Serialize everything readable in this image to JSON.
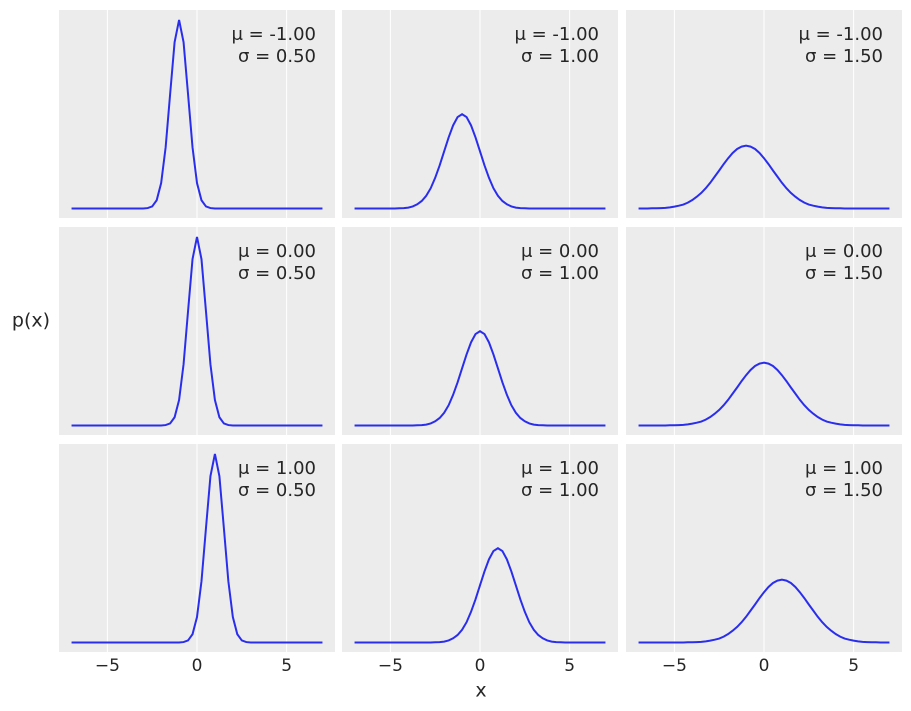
{
  "xlabel": "x",
  "ylabel": "p(x)",
  "chart_data": [
    {
      "type": "line",
      "annotation": [
        "μ = -1.00",
        "σ = 0.50"
      ],
      "color": "#2a2eec",
      "grid": true,
      "xlim": [
        -7.7,
        7.7
      ],
      "ylim": [
        -0.04,
        0.84
      ],
      "xticks": [
        {
          "value": -5,
          "label": "−5"
        },
        0,
        5
      ],
      "x": [
        -7,
        -6.75,
        -6.5,
        -6.25,
        -6,
        -5.75,
        -5.5,
        -5.25,
        -5,
        -4.75,
        -4.5,
        -4.25,
        -4,
        -3.75,
        -3.5,
        -3.25,
        -3,
        -2.75,
        -2.5,
        -2.25,
        -2,
        -1.75,
        -1.5,
        -1.25,
        -1,
        -0.75,
        -0.5,
        -0.25,
        0,
        0.25,
        0.5,
        0.75,
        1,
        1.25,
        1.5,
        1.75,
        2,
        2.25,
        2.5,
        2.75,
        3,
        3.25,
        3.5,
        3.75,
        4,
        4.25,
        4.5,
        4.75,
        5,
        5.25,
        5.5,
        5.75,
        6,
        6.25,
        6.5,
        6.75,
        7
      ],
      "values": [
        0,
        0,
        0,
        0,
        0,
        0,
        0,
        0,
        0,
        0,
        0,
        0,
        0,
        0,
        0,
        0,
        0,
        0.002,
        0.009,
        0.035,
        0.108,
        0.259,
        0.484,
        0.704,
        0.798,
        0.704,
        0.484,
        0.259,
        0.108,
        0.035,
        0.009,
        0.002,
        0,
        0,
        0,
        0,
        0,
        0,
        0,
        0,
        0,
        0,
        0,
        0,
        0,
        0,
        0,
        0,
        0,
        0,
        0,
        0,
        0,
        0,
        0,
        0,
        0
      ]
    },
    {
      "type": "line",
      "annotation": [
        "μ = -1.00",
        "σ = 1.00"
      ],
      "color": "#2a2eec",
      "grid": true,
      "xlim": [
        -7.7,
        7.7
      ],
      "ylim": [
        -0.04,
        0.84
      ],
      "xticks": [
        {
          "value": -5,
          "label": "−5"
        },
        0,
        5
      ],
      "x": [
        -7,
        -6.75,
        -6.5,
        -6.25,
        -6,
        -5.75,
        -5.5,
        -5.25,
        -5,
        -4.75,
        -4.5,
        -4.25,
        -4,
        -3.75,
        -3.5,
        -3.25,
        -3,
        -2.75,
        -2.5,
        -2.25,
        -2,
        -1.75,
        -1.5,
        -1.25,
        -1,
        -0.75,
        -0.5,
        -0.25,
        0,
        0.25,
        0.5,
        0.75,
        1,
        1.25,
        1.5,
        1.75,
        2,
        2.25,
        2.5,
        2.75,
        3,
        3.25,
        3.5,
        3.75,
        4,
        4.25,
        4.5,
        4.75,
        5,
        5.25,
        5.5,
        5.75,
        6,
        6.25,
        6.5,
        6.75,
        7
      ],
      "values": [
        0,
        0,
        0,
        0,
        0,
        0,
        0,
        0,
        0,
        0,
        0.001,
        0.002,
        0.004,
        0.009,
        0.018,
        0.032,
        0.054,
        0.086,
        0.13,
        0.183,
        0.242,
        0.301,
        0.352,
        0.387,
        0.399,
        0.387,
        0.352,
        0.301,
        0.242,
        0.183,
        0.13,
        0.086,
        0.054,
        0.032,
        0.018,
        0.009,
        0.004,
        0.002,
        0.001,
        0,
        0,
        0,
        0,
        0,
        0,
        0,
        0,
        0,
        0,
        0,
        0,
        0,
        0,
        0,
        0,
        0,
        0
      ]
    },
    {
      "type": "line",
      "annotation": [
        "μ = -1.00",
        "σ = 1.50"
      ],
      "color": "#2a2eec",
      "grid": true,
      "xlim": [
        -7.7,
        7.7
      ],
      "ylim": [
        -0.04,
        0.84
      ],
      "xticks": [
        {
          "value": -5,
          "label": "−5"
        },
        0,
        5
      ],
      "x": [
        -7,
        -6.75,
        -6.5,
        -6.25,
        -6,
        -5.75,
        -5.5,
        -5.25,
        -5,
        -4.75,
        -4.5,
        -4.25,
        -4,
        -3.75,
        -3.5,
        -3.25,
        -3,
        -2.75,
        -2.5,
        -2.25,
        -2,
        -1.75,
        -1.5,
        -1.25,
        -1,
        -0.75,
        -0.5,
        -0.25,
        0,
        0.25,
        0.5,
        0.75,
        1,
        1.25,
        1.5,
        1.75,
        2,
        2.25,
        2.5,
        2.75,
        3,
        3.25,
        3.5,
        3.75,
        4,
        4.25,
        4.5,
        4.75,
        5,
        5.25,
        5.5,
        5.75,
        6,
        6.25,
        6.5,
        6.75,
        7
      ],
      "values": [
        0,
        0,
        0,
        0.001,
        0.001,
        0.002,
        0.003,
        0.005,
        0.008,
        0.012,
        0.017,
        0.025,
        0.036,
        0.05,
        0.066,
        0.086,
        0.109,
        0.135,
        0.161,
        0.188,
        0.213,
        0.235,
        0.252,
        0.262,
        0.266,
        0.262,
        0.252,
        0.235,
        0.213,
        0.188,
        0.161,
        0.135,
        0.109,
        0.086,
        0.066,
        0.05,
        0.036,
        0.025,
        0.017,
        0.012,
        0.008,
        0.005,
        0.003,
        0.002,
        0.001,
        0.001,
        0,
        0,
        0,
        0,
        0,
        0,
        0,
        0,
        0,
        0,
        0
      ]
    },
    {
      "type": "line",
      "annotation": [
        "μ = 0.00",
        "σ = 0.50"
      ],
      "color": "#2a2eec",
      "grid": true,
      "xlim": [
        -7.7,
        7.7
      ],
      "ylim": [
        -0.04,
        0.84
      ],
      "xticks": [
        {
          "value": -5,
          "label": "−5"
        },
        0,
        5
      ],
      "x": [
        -7,
        -6.75,
        -6.5,
        -6.25,
        -6,
        -5.75,
        -5.5,
        -5.25,
        -5,
        -4.75,
        -4.5,
        -4.25,
        -4,
        -3.75,
        -3.5,
        -3.25,
        -3,
        -2.75,
        -2.5,
        -2.25,
        -2,
        -1.75,
        -1.5,
        -1.25,
        -1,
        -0.75,
        -0.5,
        -0.25,
        0,
        0.25,
        0.5,
        0.75,
        1,
        1.25,
        1.5,
        1.75,
        2,
        2.25,
        2.5,
        2.75,
        3,
        3.25,
        3.5,
        3.75,
        4,
        4.25,
        4.5,
        4.75,
        5,
        5.25,
        5.5,
        5.75,
        6,
        6.25,
        6.5,
        6.75,
        7
      ],
      "values": [
        0,
        0,
        0,
        0,
        0,
        0,
        0,
        0,
        0,
        0,
        0,
        0,
        0,
        0,
        0,
        0,
        0,
        0,
        0,
        0,
        0,
        0.002,
        0.009,
        0.035,
        0.108,
        0.259,
        0.484,
        0.704,
        0.798,
        0.704,
        0.484,
        0.259,
        0.108,
        0.035,
        0.009,
        0.002,
        0,
        0,
        0,
        0,
        0,
        0,
        0,
        0,
        0,
        0,
        0,
        0,
        0,
        0,
        0,
        0,
        0,
        0,
        0,
        0,
        0
      ]
    },
    {
      "type": "line",
      "annotation": [
        "μ = 0.00",
        "σ = 1.00"
      ],
      "color": "#2a2eec",
      "grid": true,
      "xlim": [
        -7.7,
        7.7
      ],
      "ylim": [
        -0.04,
        0.84
      ],
      "xticks": [
        {
          "value": -5,
          "label": "−5"
        },
        0,
        5
      ],
      "x": [
        -7,
        -6.75,
        -6.5,
        -6.25,
        -6,
        -5.75,
        -5.5,
        -5.25,
        -5,
        -4.75,
        -4.5,
        -4.25,
        -4,
        -3.75,
        -3.5,
        -3.25,
        -3,
        -2.75,
        -2.5,
        -2.25,
        -2,
        -1.75,
        -1.5,
        -1.25,
        -1,
        -0.75,
        -0.5,
        -0.25,
        0,
        0.25,
        0.5,
        0.75,
        1,
        1.25,
        1.5,
        1.75,
        2,
        2.25,
        2.5,
        2.75,
        3,
        3.25,
        3.5,
        3.75,
        4,
        4.25,
        4.5,
        4.75,
        5,
        5.25,
        5.5,
        5.75,
        6,
        6.25,
        6.5,
        6.75,
        7
      ],
      "values": [
        0,
        0,
        0,
        0,
        0,
        0,
        0,
        0,
        0,
        0,
        0,
        0,
        0,
        0,
        0.001,
        0.002,
        0.004,
        0.009,
        0.018,
        0.032,
        0.054,
        0.086,
        0.13,
        0.183,
        0.242,
        0.301,
        0.352,
        0.387,
        0.399,
        0.387,
        0.352,
        0.301,
        0.242,
        0.183,
        0.13,
        0.086,
        0.054,
        0.032,
        0.018,
        0.009,
        0.004,
        0.002,
        0.001,
        0,
        0,
        0,
        0,
        0,
        0,
        0,
        0,
        0,
        0,
        0,
        0,
        0,
        0
      ]
    },
    {
      "type": "line",
      "annotation": [
        "μ = 0.00",
        "σ = 1.50"
      ],
      "color": "#2a2eec",
      "grid": true,
      "xlim": [
        -7.7,
        7.7
      ],
      "ylim": [
        -0.04,
        0.84
      ],
      "xticks": [
        {
          "value": -5,
          "label": "−5"
        },
        0,
        5
      ],
      "x": [
        -7,
        -6.75,
        -6.5,
        -6.25,
        -6,
        -5.75,
        -5.5,
        -5.25,
        -5,
        -4.75,
        -4.5,
        -4.25,
        -4,
        -3.75,
        -3.5,
        -3.25,
        -3,
        -2.75,
        -2.5,
        -2.25,
        -2,
        -1.75,
        -1.5,
        -1.25,
        -1,
        -0.75,
        -0.5,
        -0.25,
        0,
        0.25,
        0.5,
        0.75,
        1,
        1.25,
        1.5,
        1.75,
        2,
        2.25,
        2.5,
        2.75,
        3,
        3.25,
        3.5,
        3.75,
        4,
        4.25,
        4.5,
        4.75,
        5,
        5.25,
        5.5,
        5.75,
        6,
        6.25,
        6.5,
        6.75,
        7
      ],
      "values": [
        0,
        0,
        0,
        0,
        0,
        0,
        0,
        0.001,
        0.001,
        0.002,
        0.003,
        0.005,
        0.008,
        0.012,
        0.017,
        0.025,
        0.036,
        0.05,
        0.066,
        0.086,
        0.109,
        0.135,
        0.161,
        0.188,
        0.213,
        0.235,
        0.252,
        0.262,
        0.266,
        0.262,
        0.252,
        0.235,
        0.213,
        0.188,
        0.161,
        0.135,
        0.109,
        0.086,
        0.066,
        0.05,
        0.036,
        0.025,
        0.017,
        0.012,
        0.008,
        0.005,
        0.003,
        0.002,
        0.001,
        0.001,
        0,
        0,
        0,
        0,
        0,
        0,
        0
      ]
    },
    {
      "type": "line",
      "annotation": [
        "μ = 1.00",
        "σ = 0.50"
      ],
      "color": "#2a2eec",
      "grid": true,
      "xlim": [
        -7.7,
        7.7
      ],
      "ylim": [
        -0.04,
        0.84
      ],
      "xticks": [
        {
          "value": -5,
          "label": "−5"
        },
        0,
        5
      ],
      "x": [
        -7,
        -6.75,
        -6.5,
        -6.25,
        -6,
        -5.75,
        -5.5,
        -5.25,
        -5,
        -4.75,
        -4.5,
        -4.25,
        -4,
        -3.75,
        -3.5,
        -3.25,
        -3,
        -2.75,
        -2.5,
        -2.25,
        -2,
        -1.75,
        -1.5,
        -1.25,
        -1,
        -0.75,
        -0.5,
        -0.25,
        0,
        0.25,
        0.5,
        0.75,
        1,
        1.25,
        1.5,
        1.75,
        2,
        2.25,
        2.5,
        2.75,
        3,
        3.25,
        3.5,
        3.75,
        4,
        4.25,
        4.5,
        4.75,
        5,
        5.25,
        5.5,
        5.75,
        6,
        6.25,
        6.5,
        6.75,
        7
      ],
      "values": [
        0,
        0,
        0,
        0,
        0,
        0,
        0,
        0,
        0,
        0,
        0,
        0,
        0,
        0,
        0,
        0,
        0,
        0,
        0,
        0,
        0,
        0,
        0,
        0,
        0,
        0.002,
        0.009,
        0.035,
        0.108,
        0.259,
        0.484,
        0.704,
        0.798,
        0.704,
        0.484,
        0.259,
        0.108,
        0.035,
        0.009,
        0.002,
        0,
        0,
        0,
        0,
        0,
        0,
        0,
        0,
        0,
        0,
        0,
        0,
        0,
        0,
        0,
        0,
        0
      ]
    },
    {
      "type": "line",
      "annotation": [
        "μ = 1.00",
        "σ = 1.00"
      ],
      "color": "#2a2eec",
      "grid": true,
      "xlim": [
        -7.7,
        7.7
      ],
      "ylim": [
        -0.04,
        0.84
      ],
      "xticks": [
        {
          "value": -5,
          "label": "−5"
        },
        0,
        5
      ],
      "x": [
        -7,
        -6.75,
        -6.5,
        -6.25,
        -6,
        -5.75,
        -5.5,
        -5.25,
        -5,
        -4.75,
        -4.5,
        -4.25,
        -4,
        -3.75,
        -3.5,
        -3.25,
        -3,
        -2.75,
        -2.5,
        -2.25,
        -2,
        -1.75,
        -1.5,
        -1.25,
        -1,
        -0.75,
        -0.5,
        -0.25,
        0,
        0.25,
        0.5,
        0.75,
        1,
        1.25,
        1.5,
        1.75,
        2,
        2.25,
        2.5,
        2.75,
        3,
        3.25,
        3.5,
        3.75,
        4,
        4.25,
        4.5,
        4.75,
        5,
        5.25,
        5.5,
        5.75,
        6,
        6.25,
        6.5,
        6.75,
        7
      ],
      "values": [
        0,
        0,
        0,
        0,
        0,
        0,
        0,
        0,
        0,
        0,
        0,
        0,
        0,
        0,
        0,
        0,
        0,
        0,
        0.001,
        0.002,
        0.004,
        0.009,
        0.018,
        0.032,
        0.054,
        0.086,
        0.13,
        0.183,
        0.242,
        0.301,
        0.352,
        0.387,
        0.399,
        0.387,
        0.352,
        0.301,
        0.242,
        0.183,
        0.13,
        0.086,
        0.054,
        0.032,
        0.018,
        0.009,
        0.004,
        0.002,
        0.001,
        0,
        0,
        0,
        0,
        0,
        0,
        0,
        0,
        0,
        0
      ]
    },
    {
      "type": "line",
      "annotation": [
        "μ = 1.00",
        "σ = 1.50"
      ],
      "color": "#2a2eec",
      "grid": true,
      "xlim": [
        -7.7,
        7.7
      ],
      "ylim": [
        -0.04,
        0.84
      ],
      "xticks": [
        {
          "value": -5,
          "label": "−5"
        },
        0,
        5
      ],
      "x": [
        -7,
        -6.75,
        -6.5,
        -6.25,
        -6,
        -5.75,
        -5.5,
        -5.25,
        -5,
        -4.75,
        -4.5,
        -4.25,
        -4,
        -3.75,
        -3.5,
        -3.25,
        -3,
        -2.75,
        -2.5,
        -2.25,
        -2,
        -1.75,
        -1.5,
        -1.25,
        -1,
        -0.75,
        -0.5,
        -0.25,
        0,
        0.25,
        0.5,
        0.75,
        1,
        1.25,
        1.5,
        1.75,
        2,
        2.25,
        2.5,
        2.75,
        3,
        3.25,
        3.5,
        3.75,
        4,
        4.25,
        4.5,
        4.75,
        5,
        5.25,
        5.5,
        5.75,
        6,
        6.25,
        6.5,
        6.75,
        7
      ],
      "values": [
        0,
        0,
        0,
        0,
        0,
        0,
        0,
        0,
        0,
        0,
        0,
        0.001,
        0.001,
        0.002,
        0.003,
        0.005,
        0.008,
        0.012,
        0.017,
        0.025,
        0.036,
        0.05,
        0.066,
        0.086,
        0.109,
        0.135,
        0.161,
        0.188,
        0.213,
        0.235,
        0.252,
        0.262,
        0.266,
        0.262,
        0.252,
        0.235,
        0.213,
        0.188,
        0.161,
        0.135,
        0.109,
        0.086,
        0.066,
        0.05,
        0.036,
        0.025,
        0.017,
        0.012,
        0.008,
        0.005,
        0.003,
        0.002,
        0.001,
        0.001,
        0,
        0,
        0
      ]
    }
  ]
}
